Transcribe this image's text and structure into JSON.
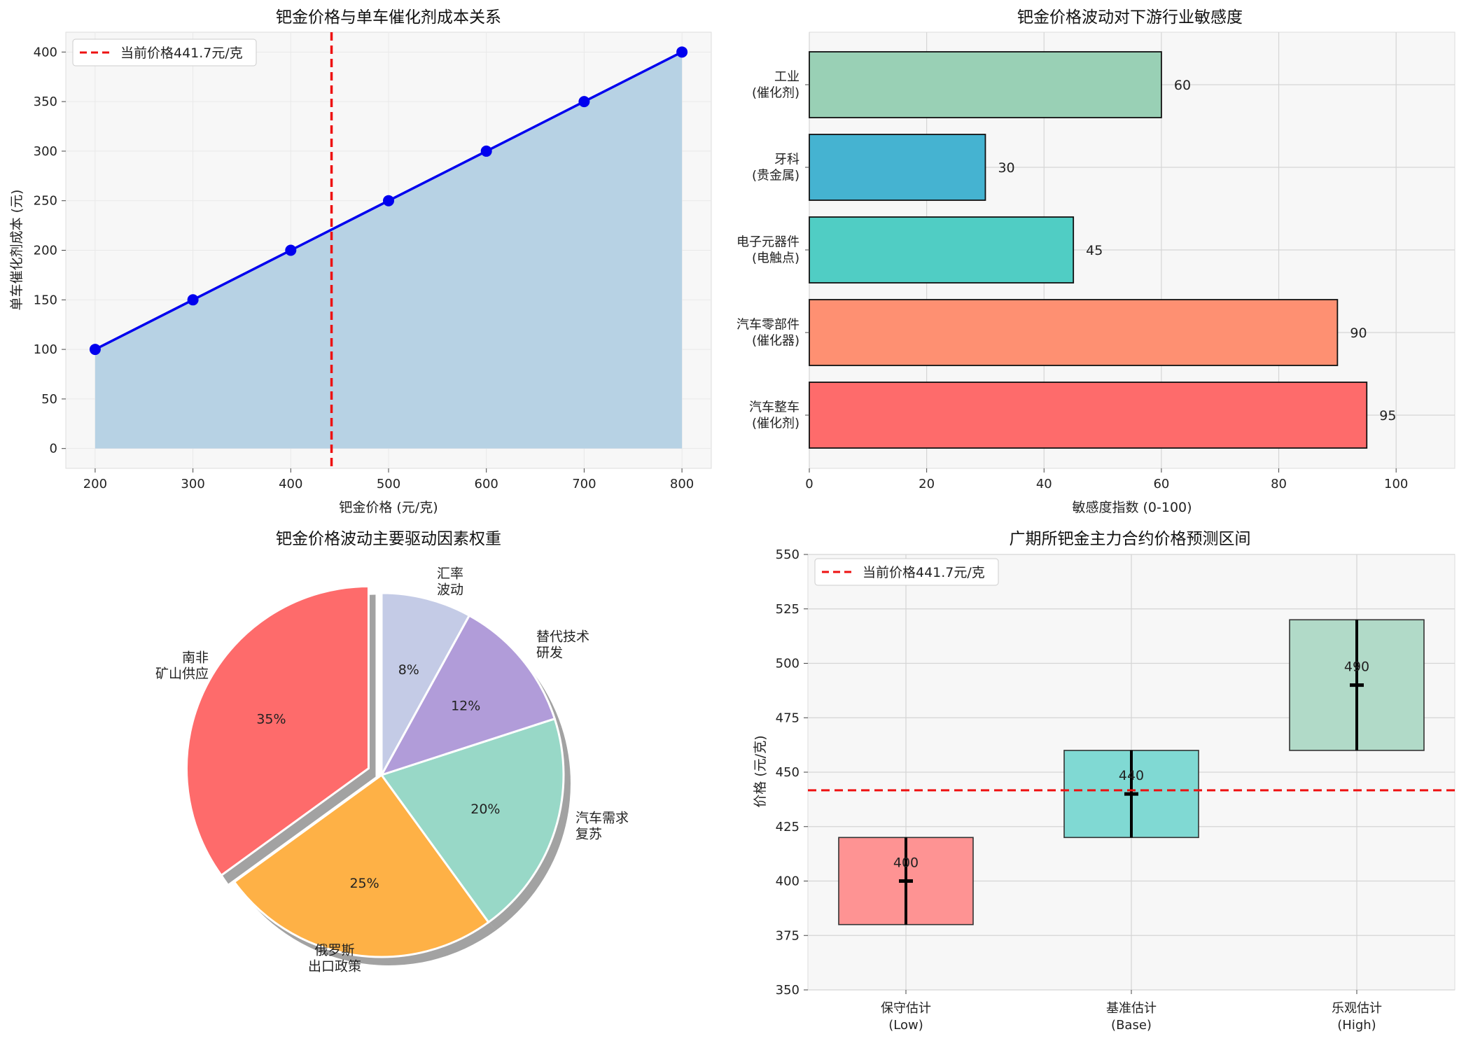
{
  "chart_data": [
    {
      "type": "line",
      "title": "钯金价格与单车催化剂成本关系",
      "xlabel": "钯金价格 (元/克)",
      "ylabel": "单车催化剂成本 (元)",
      "x": [
        200,
        300,
        400,
        500,
        600,
        700,
        800
      ],
      "y": [
        100,
        150,
        200,
        250,
        300,
        350,
        400
      ],
      "xticks": [
        200,
        300,
        400,
        500,
        600,
        700,
        800
      ],
      "yticks": [
        0,
        50,
        100,
        150,
        200,
        250,
        300,
        350,
        400
      ],
      "xlim": [
        170,
        830
      ],
      "ylim": [
        -20,
        420
      ],
      "fill_area": true,
      "reference_line": {
        "x": 441.7,
        "label": "当前价格441.7元/克",
        "color": "#ee1111"
      },
      "line_color": "#0000ee",
      "fill_color": "#b7d2e4",
      "legend": "top-left",
      "grid": true
    },
    {
      "type": "bar",
      "orientation": "horizontal",
      "title": "钯金价格波动对下游行业敏感度",
      "xlabel": "敏感度指数 (0-100)",
      "ylabel": "",
      "categories": [
        "工业\n(催化剂)",
        "牙科\n(贵金属)",
        "电子元器件\n(电触点)",
        "汽车零部件\n(催化器)",
        "汽车整车\n(催化剂)"
      ],
      "values": [
        60,
        30,
        45,
        90,
        95
      ],
      "colors": [
        "#99d0b5",
        "#45b3d1",
        "#50cdc4",
        "#fe9072",
        "#fe6b6b"
      ],
      "xticks": [
        0,
        20,
        40,
        60,
        80,
        100
      ],
      "xlim": [
        0,
        110
      ],
      "grid": true
    },
    {
      "type": "pie",
      "title": "钯金价格波动主要驱动因素权重",
      "labels": [
        "南非\n矿山供应",
        "俄罗斯\n出口政策",
        "汽车需求\n复苏",
        "替代技术\n研发",
        "汇率\n波动"
      ],
      "values": [
        35,
        25,
        20,
        12,
        8
      ],
      "value_labels": [
        "35%",
        "25%",
        "20%",
        "12%",
        "8%"
      ],
      "colors": [
        "#fe6b6b",
        "#feb146",
        "#98d8c7",
        "#b19cd9",
        "#c4cbe6"
      ],
      "explode": [
        0.08,
        0,
        0,
        0,
        0
      ],
      "start_angle": 90,
      "direction": "counterclockwise",
      "shadow": true
    },
    {
      "type": "range-bar",
      "title": "广期所钯金主力合约价格预测区间",
      "ylabel": "价格 (元/克)",
      "xlabel": "",
      "categories": [
        "保守估计\n(Low)",
        "基准估计\n(Base)",
        "乐观估计\n(High)"
      ],
      "low": [
        380,
        420,
        460
      ],
      "high": [
        420,
        460,
        520
      ],
      "mid": [
        400,
        440,
        490
      ],
      "mid_labels": [
        "400",
        "440",
        "490"
      ],
      "err_low": [
        380,
        420,
        460
      ],
      "err_high": [
        420,
        460,
        520
      ],
      "colors": [
        "#fe9393",
        "#80d9d3",
        "#b1dac8"
      ],
      "yticks": [
        350,
        375,
        400,
        425,
        450,
        475,
        500,
        525,
        550
      ],
      "ylim": [
        350,
        550
      ],
      "reference_line": {
        "y": 441.7,
        "label": "当前价格441.7元/克",
        "color": "#ee1111"
      },
      "legend": "top-left",
      "grid": true
    }
  ]
}
